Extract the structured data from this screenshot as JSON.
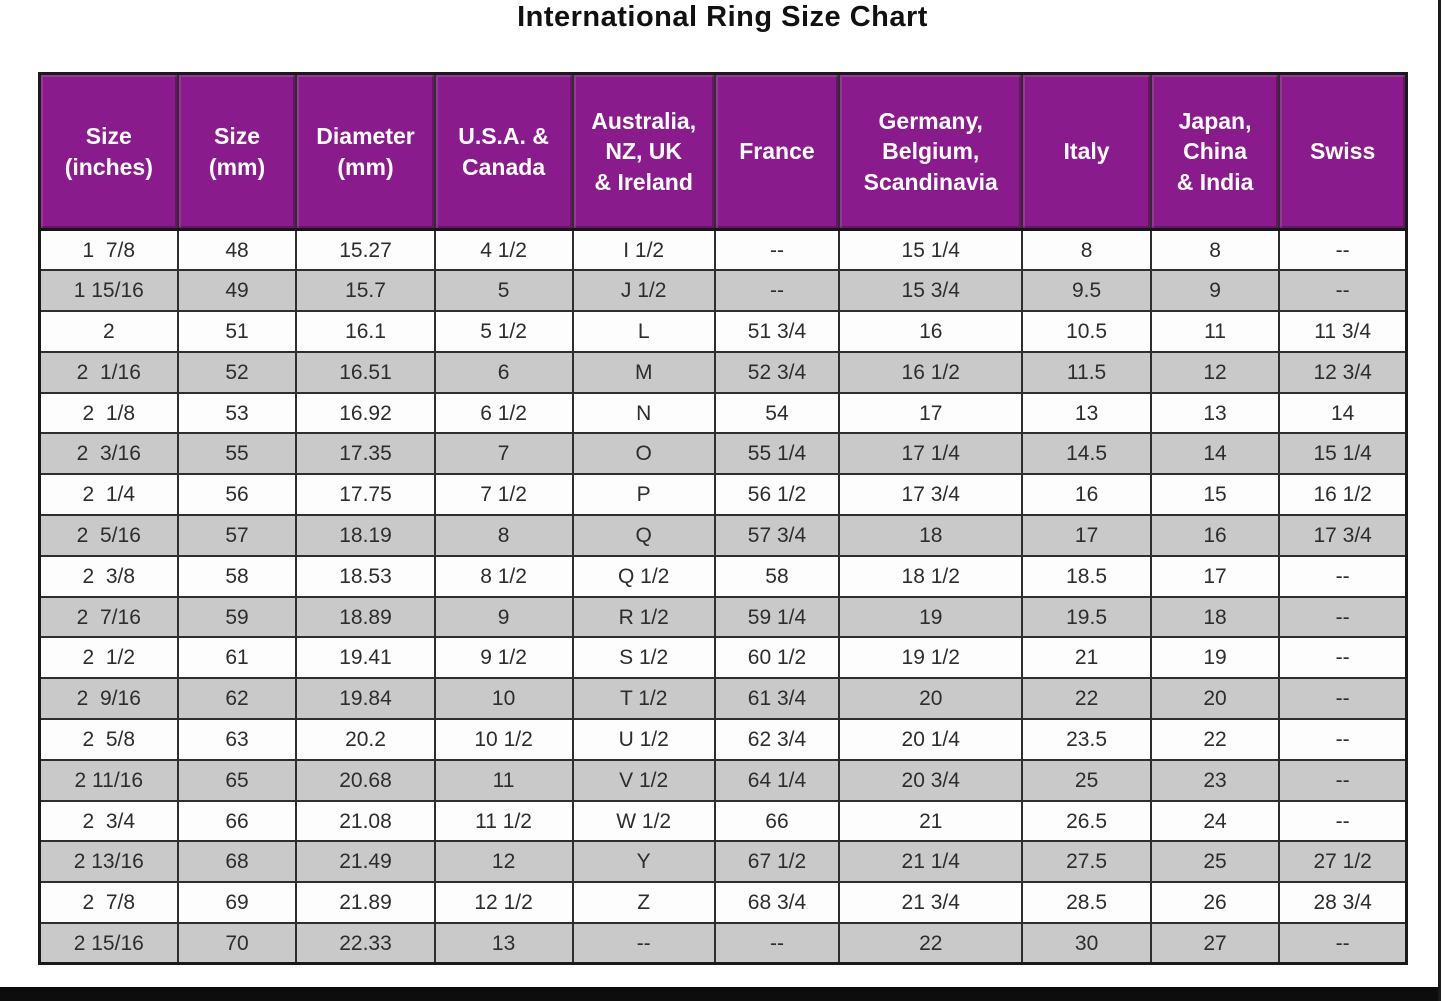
{
  "title": "International Ring Size Chart",
  "colors": {
    "header_bg": "#8a1b8c",
    "header_text": "#ffffff",
    "row_even_bg": "#fdfdfd",
    "row_odd_bg": "#c9c9c9",
    "grid_line": "#2e2e2e",
    "outer_border": "#1a1a1a",
    "cell_text": "#2d2d2d",
    "title_text": "#111111"
  },
  "chart_data": {
    "type": "table",
    "title": "International Ring Size Chart",
    "columns": [
      "Size\n(inches)",
      "Size\n(mm)",
      "Diameter\n(mm)",
      "U.S.A. &\nCanada",
      "Australia,\nNZ, UK\n& Ireland",
      "France",
      "Germany,\nBelgium,\nScandinavia",
      "Italy",
      "Japan,\nChina\n& India",
      "Swiss"
    ],
    "rows": [
      [
        "1  7/8",
        "48",
        "15.27",
        "4 1/2",
        "I 1/2",
        "--",
        "15 1/4",
        "8",
        "8",
        "--"
      ],
      [
        "1 15/16",
        "49",
        "15.7",
        "5",
        "J 1/2",
        "--",
        "15 3/4",
        "9.5",
        "9",
        "--"
      ],
      [
        "2",
        "51",
        "16.1",
        "5 1/2",
        "L",
        "51 3/4",
        "16",
        "10.5",
        "11",
        "11 3/4"
      ],
      [
        "2  1/16",
        "52",
        "16.51",
        "6",
        "M",
        "52 3/4",
        "16 1/2",
        "11.5",
        "12",
        "12 3/4"
      ],
      [
        "2  1/8",
        "53",
        "16.92",
        "6 1/2",
        "N",
        "54",
        "17",
        "13",
        "13",
        "14"
      ],
      [
        "2  3/16",
        "55",
        "17.35",
        "7",
        "O",
        "55 1/4",
        "17 1/4",
        "14.5",
        "14",
        "15 1/4"
      ],
      [
        "2  1/4",
        "56",
        "17.75",
        "7 1/2",
        "P",
        "56 1/2",
        "17 3/4",
        "16",
        "15",
        "16 1/2"
      ],
      [
        "2  5/16",
        "57",
        "18.19",
        "8",
        "Q",
        "57 3/4",
        "18",
        "17",
        "16",
        "17 3/4"
      ],
      [
        "2  3/8",
        "58",
        "18.53",
        "8 1/2",
        "Q 1/2",
        "58",
        "18 1/2",
        "18.5",
        "17",
        "--"
      ],
      [
        "2  7/16",
        "59",
        "18.89",
        "9",
        "R 1/2",
        "59 1/4",
        "19",
        "19.5",
        "18",
        "--"
      ],
      [
        "2  1/2",
        "61",
        "19.41",
        "9 1/2",
        "S 1/2",
        "60 1/2",
        "19 1/2",
        "21",
        "19",
        "--"
      ],
      [
        "2  9/16",
        "62",
        "19.84",
        "10",
        "T 1/2",
        "61 3/4",
        "20",
        "22",
        "20",
        "--"
      ],
      [
        "2  5/8",
        "63",
        "20.2",
        "10 1/2",
        "U 1/2",
        "62 3/4",
        "20 1/4",
        "23.5",
        "22",
        "--"
      ],
      [
        "2 11/16",
        "65",
        "20.68",
        "11",
        "V 1/2",
        "64 1/4",
        "20 3/4",
        "25",
        "23",
        "--"
      ],
      [
        "2  3/4",
        "66",
        "21.08",
        "11 1/2",
        "W 1/2",
        "66",
        "21",
        "26.5",
        "24",
        "--"
      ],
      [
        "2 13/16",
        "68",
        "21.49",
        "12",
        "Y",
        "67 1/2",
        "21 1/4",
        "27.5",
        "25",
        "27 1/2"
      ],
      [
        "2  7/8",
        "69",
        "21.89",
        "12 1/2",
        "Z",
        "68 3/4",
        "21 3/4",
        "28.5",
        "26",
        "28 3/4"
      ],
      [
        "2 15/16",
        "70",
        "22.33",
        "13",
        "--",
        "--",
        "22",
        "30",
        "27",
        "--"
      ]
    ]
  }
}
